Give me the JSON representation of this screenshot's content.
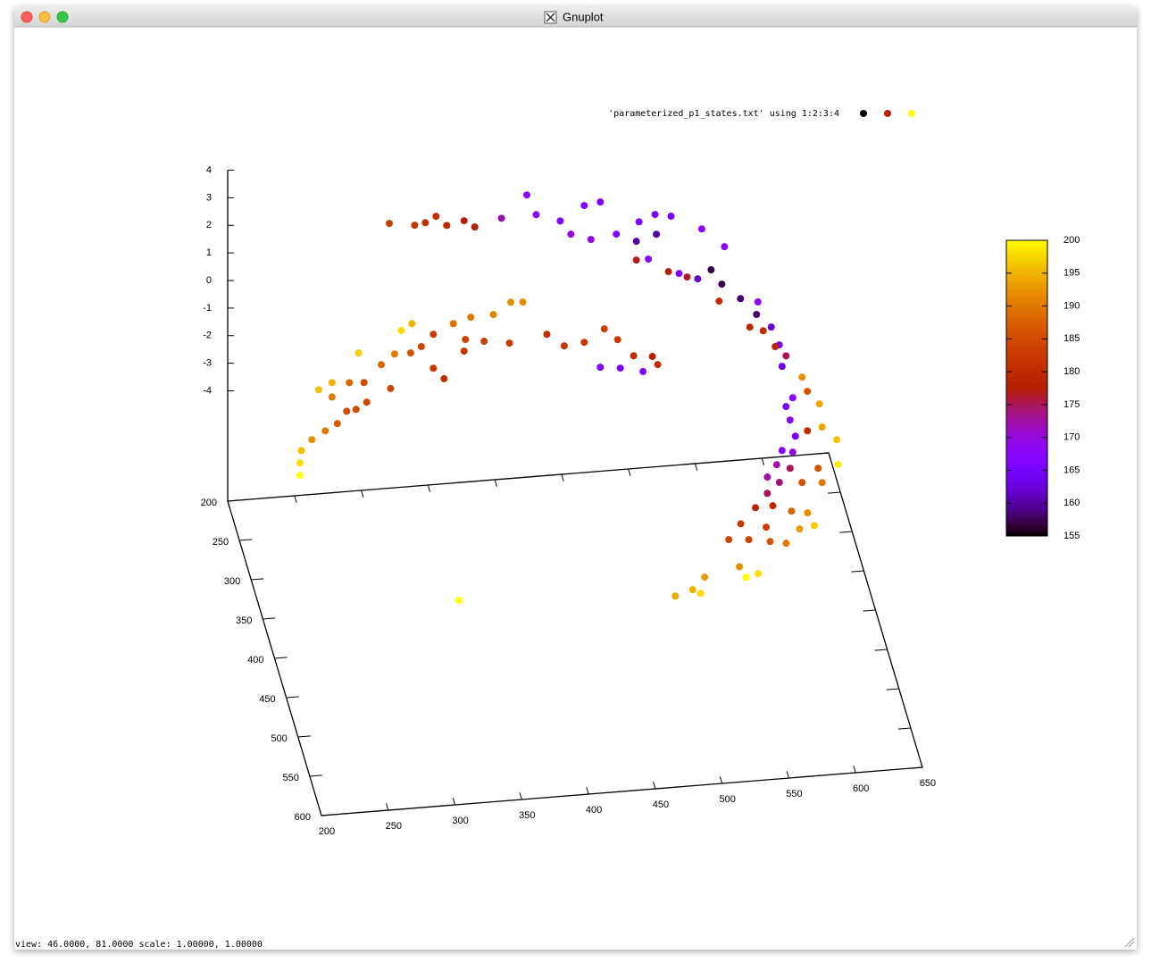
{
  "window": {
    "title": "Gnuplot",
    "status": "view: 46.0000,  81.0000   scale: 1.00000,  1.00000"
  },
  "chart_data": {
    "type": "scatter3d",
    "xlim": [
      200,
      650
    ],
    "xticks": [
      200,
      250,
      300,
      350,
      400,
      450,
      500,
      550,
      600,
      650
    ],
    "ylim": [
      200,
      600
    ],
    "yticks": [
      200,
      250,
      300,
      350,
      400,
      450,
      500,
      550,
      600
    ],
    "zlim": [
      -4,
      4
    ],
    "zticks": [
      -4,
      -3,
      -2,
      -1,
      0,
      1,
      2,
      3,
      4
    ],
    "cblim": [
      155,
      200
    ],
    "cbticks": [
      155,
      160,
      165,
      170,
      175,
      180,
      185,
      190,
      195,
      200
    ],
    "palette": "rgbformulae 7,5,15",
    "series": [
      {
        "name": "'parameterized_p1_states.txt' using 1:2:3:4",
        "x": [
          321,
          340,
          348,
          356,
          364,
          377,
          385,
          405,
          424,
          431,
          449,
          467,
          479,
          457,
          472,
          491,
          508,
          520,
          532,
          506,
          521,
          555,
          572,
          562,
          570,
          584,
          597,
          607,
          613,
          506,
          530,
          544,
          568,
          591,
          515,
          538,
          552,
          412,
          421,
          399,
          382,
          369,
          338,
          330,
          354,
          378,
          392,
          411,
          439,
          452,
          467,
          482,
          492,
          504,
          518,
          479,
          494,
          511,
          522,
          298,
          315,
          325,
          337,
          345,
          354,
          362,
          377,
          322,
          233,
          243,
          256,
          267,
          269,
          261,
          254,
          247,
          238,
          228,
          220,
          219,
          219,
          243,
          583,
          588,
          595,
          599,
          608,
          586,
          590,
          599,
          610,
          621,
          580,
          588,
          576,
          586,
          607,
          622,
          569,
          578,
          595,
          610,
          569,
          525,
          538,
          552,
          564,
          514,
          505,
          520,
          533,
          536,
          548,
          558,
          569,
          513,
          518,
          527,
          487,
          478,
          465,
          484,
          303,
          610,
          580,
          596,
          601,
          583
        ],
        "y": [
          200,
          200,
          200,
          200,
          200,
          200,
          200,
          200,
          200,
          200,
          200,
          200,
          200,
          200,
          200,
          200,
          200,
          200,
          200,
          200,
          200,
          200,
          200,
          200,
          200,
          200,
          200,
          200,
          200,
          200,
          200,
          200,
          200,
          200,
          200,
          200,
          200,
          200,
          200,
          200,
          200,
          200,
          200,
          200,
          200,
          200,
          200,
          200,
          200,
          200,
          200,
          200,
          200,
          200,
          200,
          200,
          200,
          200,
          200,
          200,
          200,
          200,
          200,
          200,
          200,
          200,
          200,
          200,
          400,
          400,
          400,
          400,
          400,
          400,
          400,
          400,
          400,
          400,
          400,
          400,
          400,
          400,
          400,
          400,
          400,
          400,
          400,
          400,
          400,
          400,
          400,
          400,
          400,
          400,
          400,
          400,
          400,
          400,
          400,
          400,
          400,
          400,
          400,
          600,
          600,
          600,
          600,
          600,
          600,
          600,
          600,
          600,
          600,
          600,
          600,
          600,
          600,
          600,
          600,
          600,
          600,
          600,
          600,
          200,
          400,
          200,
          200,
          400
        ],
        "z": [
          1.6,
          1.46,
          1.52,
          1.72,
          1.36,
          1.48,
          1.22,
          1.46,
          2.23,
          1.49,
          1.19,
          1.68,
          1.76,
          0.68,
          0.43,
          0.55,
          0.93,
          1.15,
          1.04,
          0.23,
          0.43,
          0.49,
          -0.22,
          -1.02,
          -1.57,
          -2.15,
          -2.32,
          -3.27,
          -3.94,
          -0.45,
          -0.96,
          -1.21,
          -2.18,
          -3.21,
          -0.45,
          -1.06,
          -1.31,
          -1.61,
          -1.64,
          -2.01,
          -2.04,
          -2.22,
          -2.1,
          -2.32,
          -2.55,
          -2.83,
          -2.95,
          -3.09,
          -2.88,
          -3.35,
          -3.28,
          -2.85,
          -3.28,
          -3.91,
          -3.99,
          -4.23,
          -4.32,
          -4.51,
          -4.3,
          -3.01,
          -3.5,
          -3.15,
          -3.16,
          -2.96,
          -3.78,
          -4.19,
          -3.25,
          -4.39,
          1.61,
          1.83,
          1.78,
          1.74,
          1.02,
          0.79,
          0.75,
          0.33,
          0.1,
          -0.18,
          -0.54,
          -0.99,
          -1.44,
          1.31,
          -0.36,
          -0.06,
          0.66,
          0.13,
          -0.36,
          -0.86,
          -1.46,
          -1.3,
          -1.21,
          -1.71,
          -1.94,
          -2.03,
          -2.44,
          -2.61,
          -2.69,
          -2.61,
          -2.86,
          -3.09,
          -3.16,
          -3.22,
          -3.45,
          1.9,
          1.92,
          1.67,
          1.56,
          1.36,
          0.82,
          0.76,
          1.16,
          0.63,
          0.52,
          1.0,
          1.08,
          -0.19,
          -0.6,
          -0.5,
          -0.47,
          -0.89,
          -1.07,
          -1.05,
          -0.6,
          -3.99,
          1.11,
          -2.77,
          -3.38,
          1.48
        ],
        "color_values": [
          183,
          182,
          181,
          180,
          180,
          177,
          177,
          172,
          168,
          168,
          167,
          166,
          165,
          170,
          170,
          166,
          165,
          165,
          165,
          160,
          160,
          167,
          168,
          157,
          157,
          158,
          168,
          162,
          165,
          177,
          178,
          176,
          180,
          179,
          168,
          166,
          162,
          192,
          192,
          191,
          190,
          189,
          195,
          198,
          183,
          184,
          183,
          182,
          181,
          182,
          182,
          183,
          182,
          180,
          178,
          166,
          166,
          167,
          180,
          197,
          188,
          190,
          186,
          184,
          182,
          180,
          182,
          184,
          196,
          195,
          188,
          185,
          184,
          185,
          185,
          187,
          190,
          192,
          196,
          198,
          200,
          190,
          164,
          168,
          192,
          186,
          194,
          168,
          165,
          180,
          194,
          196,
          166,
          170,
          173,
          175,
          186,
          199,
          172,
          174,
          186,
          190,
          175,
          178,
          180,
          188,
          192,
          182,
          184,
          184,
          183,
          186,
          190,
          193,
          197,
          192,
          200,
          198,
          193,
          195,
          194,
          198,
          200,
          178,
          163,
          158,
          180,
          175
        ]
      }
    ]
  }
}
